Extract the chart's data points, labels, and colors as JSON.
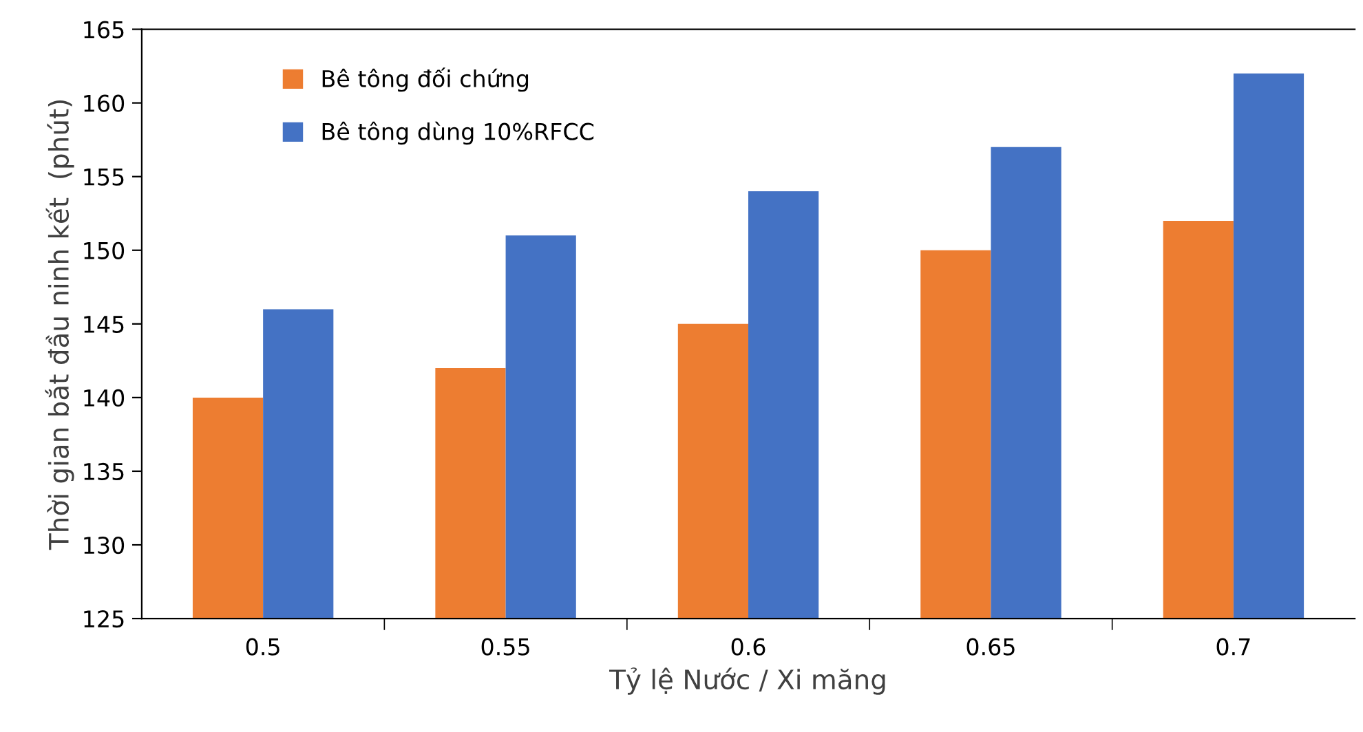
{
  "chart_data": {
    "type": "bar",
    "xlabel": "Tỷ lệ Nước / Xi măng",
    "ylabel": "Thời gian bắt đầu ninh kết  (phút)",
    "categories": [
      "0.5",
      "0.55",
      "0.6",
      "0.65",
      "0.7"
    ],
    "series": [
      {
        "name": "Bê tông đối chứng",
        "color": "#ed7d31",
        "values": [
          140,
          142,
          145,
          150,
          152
        ]
      },
      {
        "name": "Bê tông dùng 10%RFCC",
        "color": "#4472c4",
        "values": [
          146,
          151,
          154,
          157,
          162
        ]
      }
    ],
    "ylim": [
      125,
      165
    ],
    "yticks": [
      125,
      130,
      135,
      140,
      145,
      150,
      155,
      160,
      165
    ],
    "grid": false,
    "legend": "top left"
  }
}
